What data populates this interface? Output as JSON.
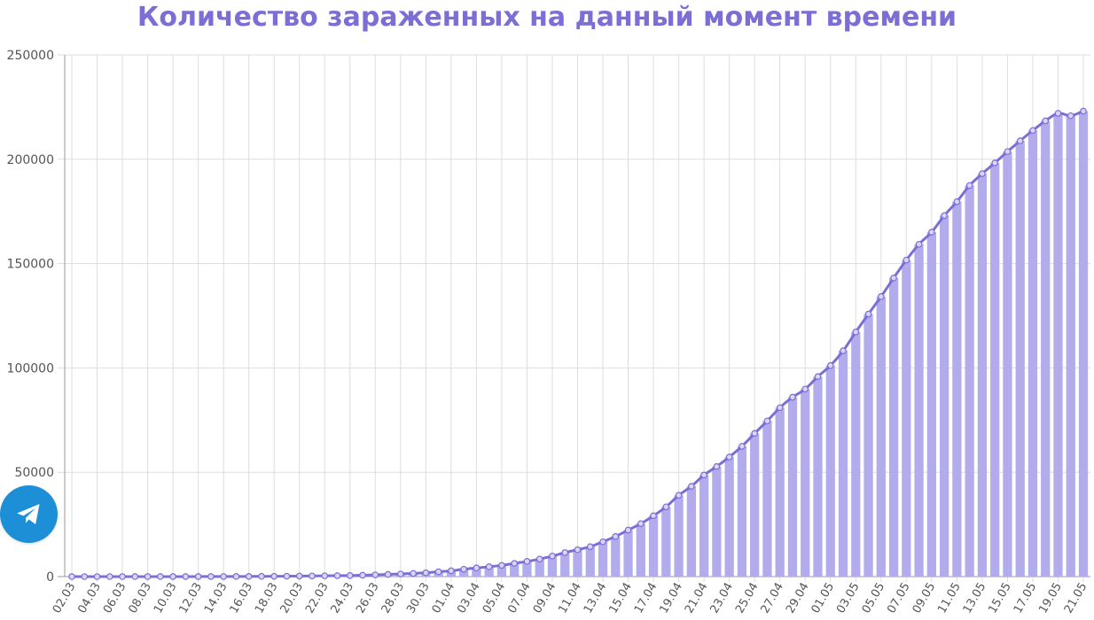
{
  "chart_data": {
    "type": "bar",
    "title": "Количество зараженных на данный момент времени",
    "ylim": [
      0,
      250000
    ],
    "y_ticks": [
      "0",
      "50000",
      "100000",
      "150000",
      "200000",
      "250000"
    ],
    "categories": [
      "02.03",
      "03.03",
      "04.03",
      "05.03",
      "06.03",
      "07.03",
      "08.03",
      "09.03",
      "10.03",
      "11.03",
      "12.03",
      "13.03",
      "14.03",
      "15.03",
      "16.03",
      "17.03",
      "18.03",
      "19.03",
      "20.03",
      "21.03",
      "22.03",
      "23.03",
      "24.03",
      "25.03",
      "26.03",
      "27.03",
      "28.03",
      "29.03",
      "30.03",
      "31.03",
      "01.04",
      "02.04",
      "03.04",
      "04.04",
      "05.04",
      "06.04",
      "07.04",
      "08.04",
      "09.04",
      "10.04",
      "11.04",
      "12.04",
      "13.04",
      "14.04",
      "15.04",
      "16.04",
      "17.04",
      "18.04",
      "19.04",
      "20.04",
      "21.04",
      "22.04",
      "23.04",
      "24.04",
      "25.04",
      "26.04",
      "27.04",
      "28.04",
      "29.04",
      "30.04",
      "01.05",
      "02.05",
      "03.05",
      "04.05",
      "05.05",
      "06.05",
      "07.05",
      "08.05",
      "09.05",
      "10.05",
      "11.05",
      "12.05",
      "13.05",
      "14.05",
      "15.05",
      "16.05",
      "17.05",
      "18.05",
      "19.05",
      "20.05",
      "21.05"
    ],
    "x_tick_labels": [
      "02.03",
      "04.03",
      "06.03",
      "08.03",
      "10.03",
      "12.03",
      "14.03",
      "16.03",
      "18.03",
      "20.03",
      "22.03",
      "24.03",
      "26.03",
      "28.03",
      "30.03",
      "01.04",
      "03.04",
      "05.04",
      "07.04",
      "09.04",
      "11.04",
      "13.04",
      "15.04",
      "17.04",
      "19.04",
      "21.04",
      "23.04",
      "25.04",
      "27.04",
      "29.04",
      "01.05",
      "03.05",
      "05.05",
      "07.05",
      "09.05",
      "11.05",
      "13.05",
      "15.05",
      "17.05",
      "19.05",
      "21.05"
    ],
    "series": [
      {
        "type": "bar",
        "values": [
          3,
          3,
          3,
          4,
          5,
          7,
          8,
          10,
          15,
          20,
          28,
          34,
          45,
          60,
          90,
          114,
          147,
          199,
          253,
          306,
          367,
          438,
          495,
          658,
          840,
          1036,
          1264,
          1534,
          1836,
          2337,
          2777,
          3548,
          4149,
          4731,
          5389,
          6343,
          7284,
          8420,
          9852,
          11514,
          12897,
          14349,
          16710,
          19238,
          22308,
          25402,
          29145,
          33423,
          38969,
          43270,
          48671,
          52763,
          57327,
          62439,
          68622,
          74588,
          80949,
          85973,
          89876,
          95843,
          101147,
          108216,
          117219,
          125817,
          134187,
          143125,
          151679,
          159260,
          165085,
          173003,
          179672,
          187440,
          193092,
          198250,
          203676,
          208839,
          213813,
          218393,
          222030,
          220868,
          223060
        ]
      }
    ],
    "colors": {
      "bar": "#b3acec",
      "line": "#7b6fd6",
      "title": "#7b6fd6",
      "grid": "#dddddd"
    },
    "grid": true
  },
  "telegram_button": {
    "icon": "telegram-paper-plane-icon",
    "color": "#1c8fd6"
  }
}
